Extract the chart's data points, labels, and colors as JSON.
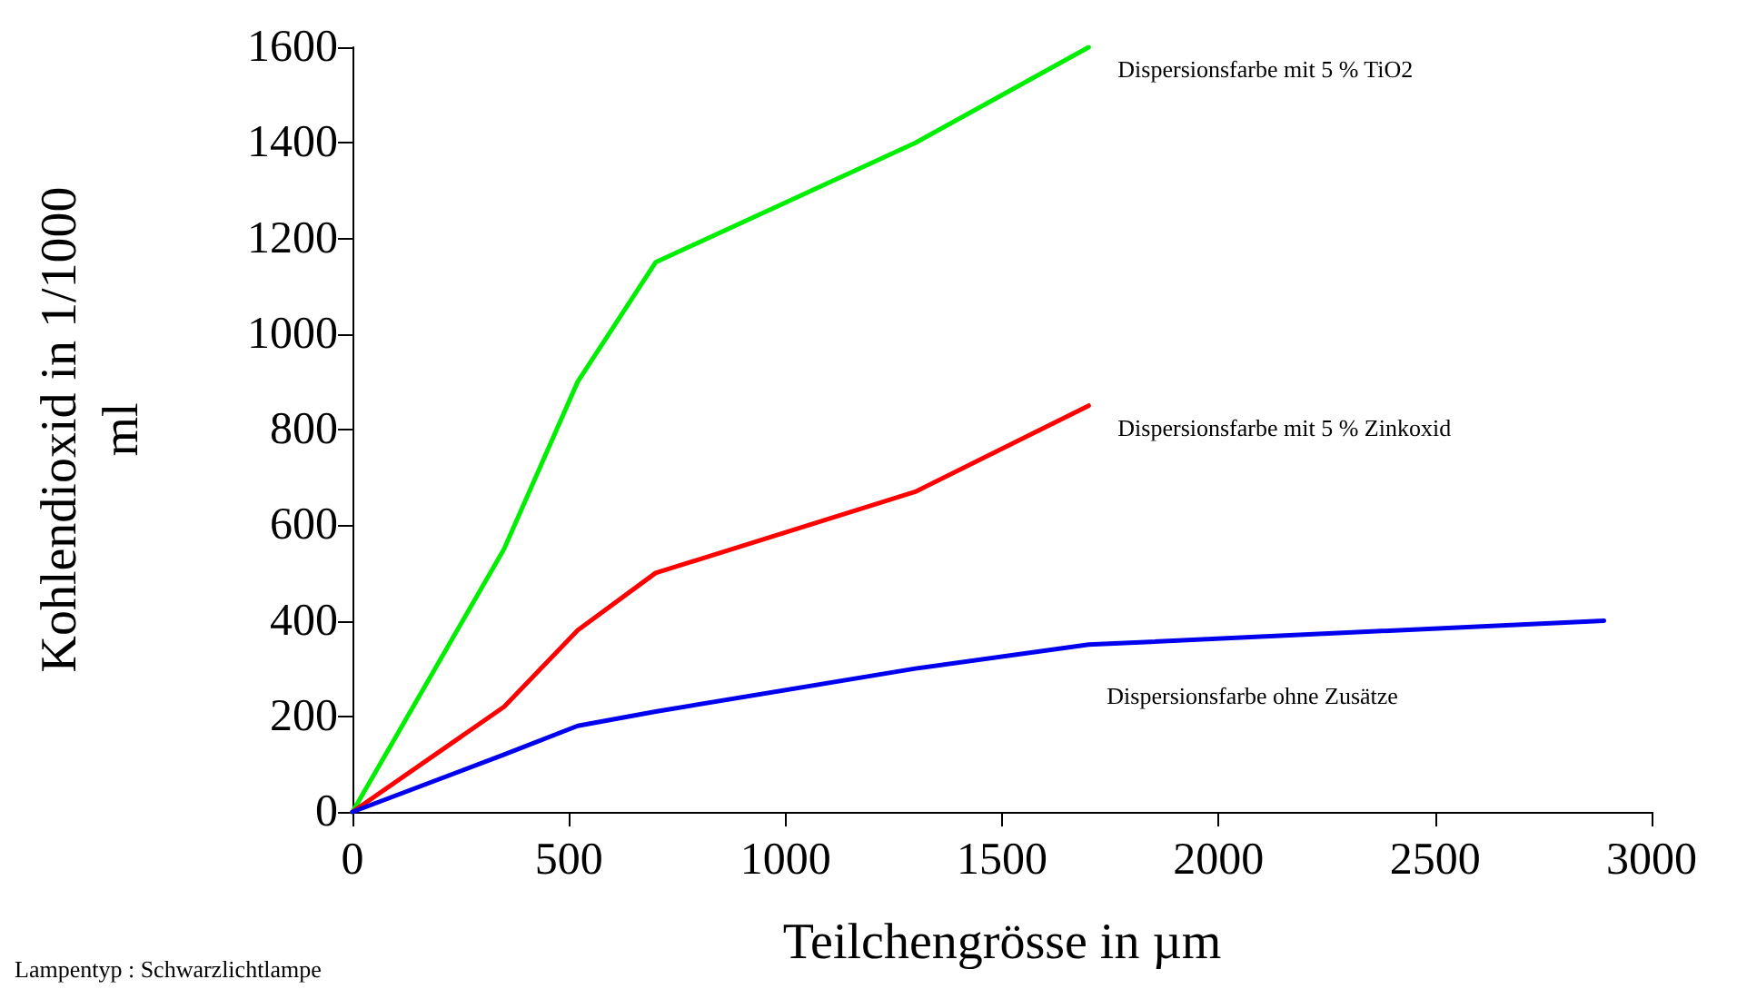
{
  "chart_data": {
    "type": "line",
    "xlabel": "Teilchengrösse in µm",
    "ylabel": "Kohlendioxid in 1/1000\nml",
    "xlim": [
      0,
      3000
    ],
    "xticks": [
      0,
      500,
      1000,
      1500,
      2000,
      2500,
      3000
    ],
    "ylim": [
      0,
      1600
    ],
    "yticks": [
      0,
      200,
      400,
      600,
      800,
      1000,
      1200,
      1400,
      1600
    ],
    "grid": false,
    "legend": false,
    "marker": "none",
    "line_style": "solid",
    "series": [
      {
        "name": "Dispersionsfarbe mit 5 % TiO2",
        "color": "#00ee00",
        "x": [
          0,
          350,
          520,
          700,
          1300,
          1700
        ],
        "values": [
          0,
          550,
          900,
          1150,
          1400,
          1600
        ]
      },
      {
        "name": "Dispersionsfarbe mit 5 % Zinkoxid",
        "color": "#ff0000",
        "x": [
          0,
          350,
          520,
          700,
          1300,
          1700
        ],
        "values": [
          0,
          220,
          380,
          500,
          670,
          850
        ]
      },
      {
        "name": "Dispersionsfarbe ohne Zusätze",
        "color": "#0000ee",
        "x": [
          0,
          350,
          520,
          700,
          1300,
          1700,
          2890
        ],
        "values": [
          0,
          120,
          180,
          210,
          300,
          350,
          400
        ]
      }
    ],
    "annotations": [
      "Lampentyp : Schwarzlichtlampe"
    ]
  }
}
